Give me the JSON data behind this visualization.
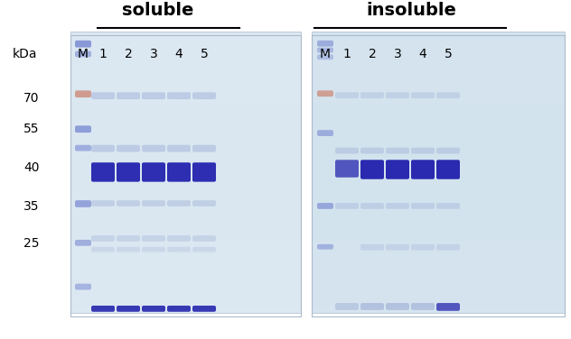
{
  "title_left": "soluble",
  "title_right": "insoluble",
  "kda_label": "kDa",
  "marker_label": "M",
  "lane_labels": [
    "1",
    "2",
    "3",
    "4",
    "5"
  ],
  "mw_labels": [
    "70",
    "55",
    "40",
    "35",
    "25"
  ],
  "bg_color_left": "#e8eef5",
  "bg_color_right": "#dde8f0",
  "band_color_main": "#1a1aaa",
  "band_color_faint": "#8899cc",
  "band_color_marker_blue": "#6677cc",
  "band_color_marker_pink": "#cc8877",
  "gel_bg": "#d8e4ef"
}
